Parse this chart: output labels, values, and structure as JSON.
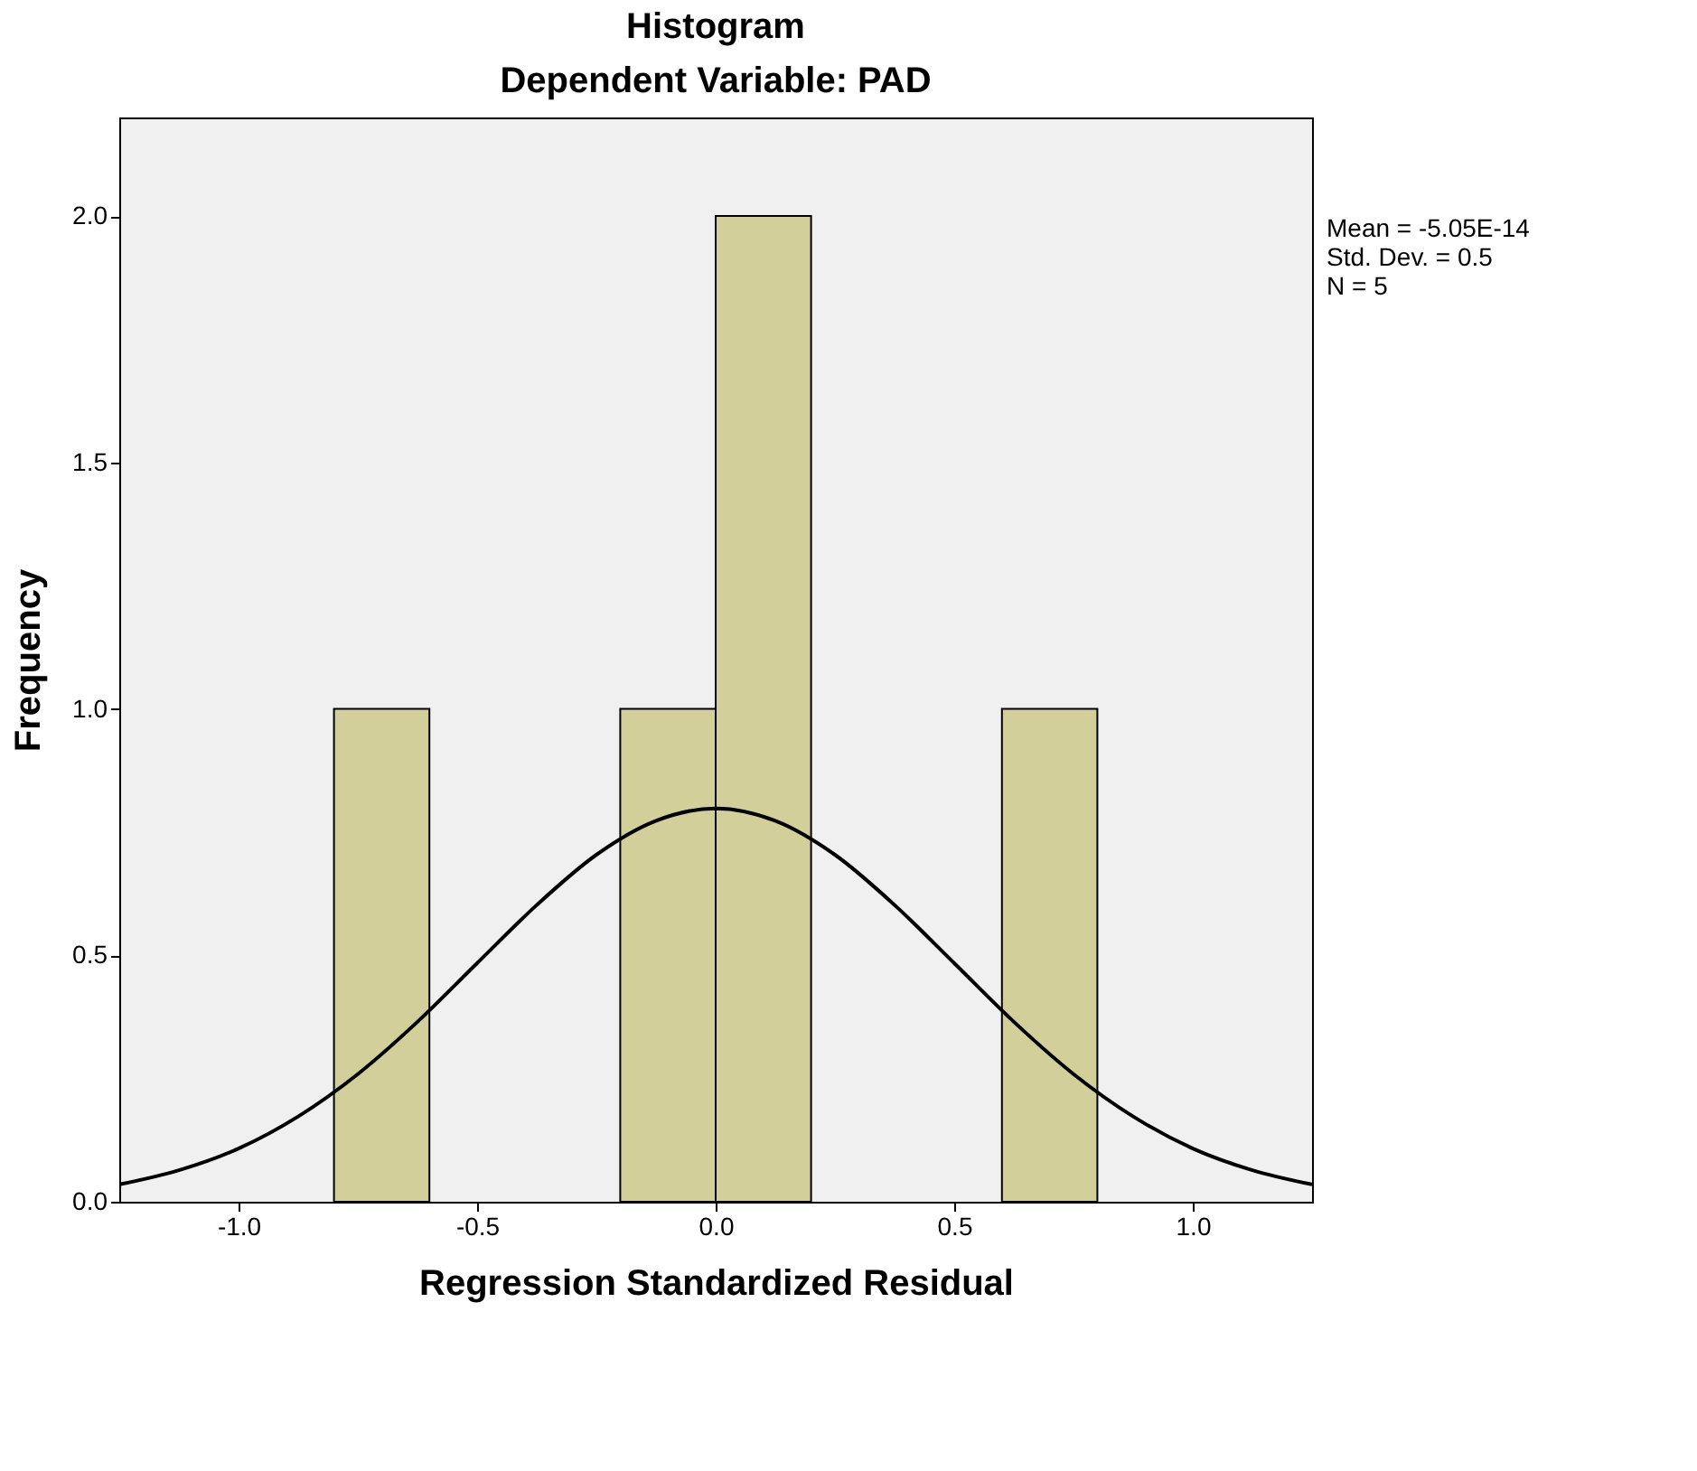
{
  "chart_data": {
    "type": "histogram",
    "title": "Histogram",
    "subtitle": "Dependent Variable: PAD",
    "xlabel": "Regression Standardized Residual",
    "ylabel": "Frequency",
    "bins": [
      -0.8,
      -0.6,
      -0.4,
      -0.2,
      0.0,
      0.2,
      0.4,
      0.6,
      0.8
    ],
    "values": [
      1,
      0,
      0,
      1,
      2,
      0,
      0,
      1
    ],
    "color": "#d3cf9a",
    "series": [
      {
        "type": "line",
        "color": "#000000",
        "x": [
          -1.25,
          -1.125,
          -1.0,
          -0.875,
          -0.75,
          -0.625,
          -0.5,
          -0.375,
          -0.25,
          -0.125,
          0.0,
          0.125,
          0.25,
          0.375,
          0.5,
          0.625,
          0.75,
          0.875,
          1.0,
          1.125,
          1.25
        ],
        "values": [
          0.035,
          0.064,
          0.108,
          0.173,
          0.259,
          0.365,
          0.484,
          0.602,
          0.704,
          0.773,
          0.798,
          0.773,
          0.704,
          0.602,
          0.484,
          0.365,
          0.259,
          0.173,
          0.108,
          0.064,
          0.035
        ]
      }
    ],
    "xlim": [
      -1.25,
      1.25
    ],
    "xticks": [
      {
        "value": -1.0,
        "label": "-1.0"
      },
      {
        "value": -0.5,
        "label": "-0.5"
      },
      {
        "value": 0.0,
        "label": "0.0"
      },
      {
        "value": 0.5,
        "label": "0.5"
      },
      {
        "value": 1.0,
        "label": "1.0"
      }
    ],
    "ylim": [
      0,
      2.2
    ],
    "yticks": [
      {
        "value": 0.0,
        "label": "0.0"
      },
      {
        "value": 0.5,
        "label": "0.5"
      },
      {
        "value": 1.0,
        "label": "1.0"
      },
      {
        "value": 1.5,
        "label": "1.5"
      },
      {
        "value": 2.0,
        "label": "2.0"
      }
    ],
    "annotations": [
      "Mean = -5.05E-14",
      "Std. Dev. = 0.5",
      "N = 5"
    ],
    "grid": false
  }
}
